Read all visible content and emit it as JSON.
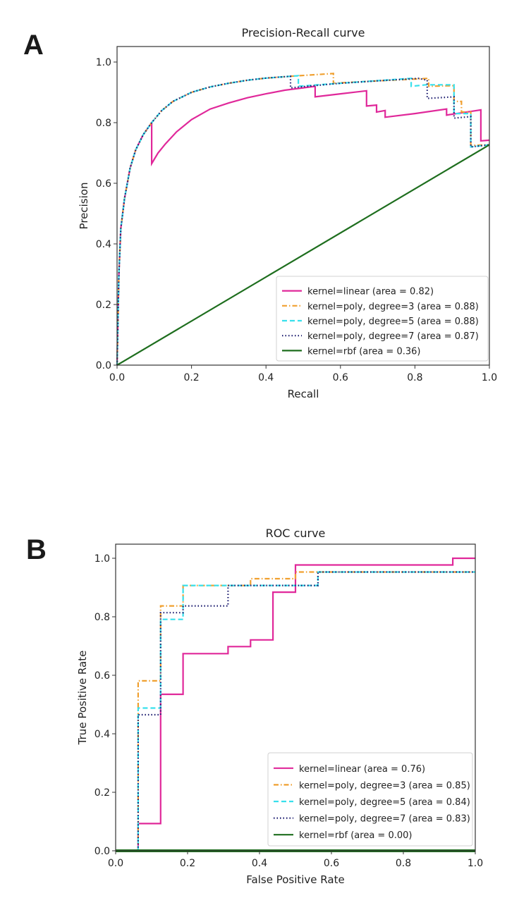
{
  "panels": {
    "a_label": "A",
    "b_label": "B"
  },
  "colors": {
    "linear": "#e0289a",
    "poly3": "#f0a030",
    "poly5": "#38e0ec",
    "poly7": "#1a1a6e",
    "rbf": "#1e6e1e"
  },
  "chart_data": [
    {
      "type": "line",
      "id": "pr",
      "title": "Precision-Recall curve",
      "xlabel": "Recall",
      "ylabel": "Precision",
      "xlim": [
        0.0,
        1.0
      ],
      "ylim": [
        0.0,
        1.05
      ],
      "xticks": [
        "0.0",
        "0.2",
        "0.4",
        "0.6",
        "0.8",
        "1.0"
      ],
      "yticks": [
        "0.0",
        "0.2",
        "0.4",
        "0.6",
        "0.8",
        "1.0"
      ],
      "grid": false,
      "legend_position": "lower-right",
      "series": [
        {
          "key": "linear",
          "name": "kernel=linear (area = 0.82)",
          "style": "solid",
          "points": [
            [
              0.0,
              0.0
            ],
            [
              0.005,
              0.3
            ],
            [
              0.01,
              0.45
            ],
            [
              0.02,
              0.55
            ],
            [
              0.035,
              0.65
            ],
            [
              0.05,
              0.71
            ],
            [
              0.07,
              0.76
            ],
            [
              0.093,
              0.8
            ],
            [
              0.093,
              0.665
            ],
            [
              0.11,
              0.7
            ],
            [
              0.13,
              0.73
            ],
            [
              0.16,
              0.77
            ],
            [
              0.2,
              0.81
            ],
            [
              0.25,
              0.845
            ],
            [
              0.3,
              0.865
            ],
            [
              0.35,
              0.882
            ],
            [
              0.4,
              0.895
            ],
            [
              0.45,
              0.907
            ],
            [
              0.5,
              0.915
            ],
            [
              0.532,
              0.92
            ],
            [
              0.532,
              0.885
            ],
            [
              0.6,
              0.895
            ],
            [
              0.67,
              0.905
            ],
            [
              0.67,
              0.855
            ],
            [
              0.697,
              0.858
            ],
            [
              0.697,
              0.835
            ],
            [
              0.72,
              0.84
            ],
            [
              0.72,
              0.818
            ],
            [
              0.8,
              0.83
            ],
            [
              0.885,
              0.845
            ],
            [
              0.885,
              0.825
            ],
            [
              0.955,
              0.838
            ],
            [
              0.977,
              0.842
            ],
            [
              0.977,
              0.74
            ],
            [
              1.0,
              0.742
            ]
          ]
        },
        {
          "key": "poly3",
          "name": "kernel=poly, degree=3 (area = 0.88)",
          "style": "dashdot",
          "points": [
            [
              0.0,
              0.0
            ],
            [
              0.005,
              0.3
            ],
            [
              0.01,
              0.45
            ],
            [
              0.02,
              0.55
            ],
            [
              0.035,
              0.65
            ],
            [
              0.05,
              0.71
            ],
            [
              0.07,
              0.76
            ],
            [
              0.093,
              0.8
            ],
            [
              0.12,
              0.84
            ],
            [
              0.15,
              0.87
            ],
            [
              0.2,
              0.9
            ],
            [
              0.25,
              0.918
            ],
            [
              0.3,
              0.93
            ],
            [
              0.35,
              0.94
            ],
            [
              0.4,
              0.947
            ],
            [
              0.466,
              0.953
            ],
            [
              0.581,
              0.962
            ],
            [
              0.581,
              0.93
            ],
            [
              0.7,
              0.938
            ],
            [
              0.837,
              0.946
            ],
            [
              0.837,
              0.92
            ],
            [
              0.905,
              0.922
            ],
            [
              0.905,
              0.87
            ],
            [
              0.925,
              0.87
            ],
            [
              0.925,
              0.835
            ],
            [
              0.95,
              0.835
            ],
            [
              0.95,
              0.725
            ],
            [
              1.0,
              0.727
            ]
          ]
        },
        {
          "key": "poly5",
          "name": "kernel=poly, degree=5 (area = 0.88)",
          "style": "dashed",
          "points": [
            [
              0.0,
              0.0
            ],
            [
              0.005,
              0.3
            ],
            [
              0.01,
              0.45
            ],
            [
              0.02,
              0.55
            ],
            [
              0.035,
              0.65
            ],
            [
              0.05,
              0.71
            ],
            [
              0.07,
              0.76
            ],
            [
              0.093,
              0.8
            ],
            [
              0.12,
              0.84
            ],
            [
              0.15,
              0.87
            ],
            [
              0.2,
              0.9
            ],
            [
              0.25,
              0.918
            ],
            [
              0.3,
              0.93
            ],
            [
              0.35,
              0.94
            ],
            [
              0.4,
              0.947
            ],
            [
              0.466,
              0.953
            ],
            [
              0.487,
              0.955
            ],
            [
              0.487,
              0.92
            ],
            [
              0.6,
              0.93
            ],
            [
              0.79,
              0.946
            ],
            [
              0.79,
              0.92
            ],
            [
              0.83,
              0.925
            ],
            [
              0.905,
              0.925
            ],
            [
              0.905,
              0.83
            ],
            [
              0.95,
              0.83
            ],
            [
              0.95,
              0.72
            ],
            [
              1.0,
              0.727
            ]
          ]
        },
        {
          "key": "poly7",
          "name": "kernel=poly, degree=7 (area = 0.87)",
          "style": "dotted",
          "points": [
            [
              0.0,
              0.0
            ],
            [
              0.005,
              0.3
            ],
            [
              0.01,
              0.45
            ],
            [
              0.02,
              0.55
            ],
            [
              0.035,
              0.65
            ],
            [
              0.05,
              0.71
            ],
            [
              0.07,
              0.76
            ],
            [
              0.093,
              0.8
            ],
            [
              0.12,
              0.84
            ],
            [
              0.15,
              0.87
            ],
            [
              0.2,
              0.9
            ],
            [
              0.25,
              0.918
            ],
            [
              0.3,
              0.93
            ],
            [
              0.35,
              0.94
            ],
            [
              0.4,
              0.947
            ],
            [
              0.466,
              0.953
            ],
            [
              0.466,
              0.915
            ],
            [
              0.6,
              0.93
            ],
            [
              0.7,
              0.938
            ],
            [
              0.81,
              0.946
            ],
            [
              0.833,
              0.94
            ],
            [
              0.833,
              0.88
            ],
            [
              0.905,
              0.885
            ],
            [
              0.905,
              0.815
            ],
            [
              0.95,
              0.82
            ],
            [
              0.95,
              0.72
            ],
            [
              1.0,
              0.727
            ]
          ]
        },
        {
          "key": "rbf",
          "name": "kernel=rbf (area = 0.36)",
          "style": "solid",
          "points": [
            [
              0.0,
              0.0
            ],
            [
              1.0,
              0.727
            ]
          ]
        }
      ]
    },
    {
      "type": "line",
      "id": "roc",
      "title": "ROC curve",
      "xlabel": "False Positive Rate",
      "ylabel": "True Positive Rate",
      "xlim": [
        0.0,
        1.0
      ],
      "ylim": [
        0.0,
        1.05
      ],
      "xticks": [
        "0.0",
        "0.2",
        "0.4",
        "0.6",
        "0.8",
        "1.0"
      ],
      "yticks": [
        "0.0",
        "0.2",
        "0.4",
        "0.6",
        "0.8",
        "1.0"
      ],
      "grid": false,
      "legend_position": "lower-right",
      "series": [
        {
          "key": "linear",
          "name": "kernel=linear (area = 0.76)",
          "style": "solid",
          "points": [
            [
              0.0625,
              0.0
            ],
            [
              0.0625,
              0.093
            ],
            [
              0.125,
              0.093
            ],
            [
              0.125,
              0.535
            ],
            [
              0.1875,
              0.535
            ],
            [
              0.1875,
              0.674
            ],
            [
              0.3125,
              0.674
            ],
            [
              0.3125,
              0.698
            ],
            [
              0.375,
              0.698
            ],
            [
              0.375,
              0.721
            ],
            [
              0.4375,
              0.721
            ],
            [
              0.4375,
              0.884
            ],
            [
              0.5,
              0.884
            ],
            [
              0.5,
              0.977
            ],
            [
              0.9375,
              0.977
            ],
            [
              0.9375,
              1.0
            ],
            [
              1.0,
              1.0
            ]
          ]
        },
        {
          "key": "poly3",
          "name": "kernel=poly, degree=3 (area = 0.85)",
          "style": "dashdot",
          "points": [
            [
              0.0625,
              0.0
            ],
            [
              0.0625,
              0.581
            ],
            [
              0.125,
              0.581
            ],
            [
              0.125,
              0.837
            ],
            [
              0.1875,
              0.837
            ],
            [
              0.1875,
              0.907
            ],
            [
              0.375,
              0.907
            ],
            [
              0.375,
              0.93
            ],
            [
              0.5,
              0.93
            ],
            [
              0.5,
              0.953
            ],
            [
              1.0,
              0.953
            ]
          ]
        },
        {
          "key": "poly5",
          "name": "kernel=poly, degree=5 (area = 0.84)",
          "style": "dashed",
          "points": [
            [
              0.0625,
              0.0
            ],
            [
              0.0625,
              0.488
            ],
            [
              0.125,
              0.488
            ],
            [
              0.125,
              0.791
            ],
            [
              0.1875,
              0.791
            ],
            [
              0.1875,
              0.907
            ],
            [
              0.5625,
              0.907
            ],
            [
              0.5625,
              0.953
            ],
            [
              1.0,
              0.953
            ]
          ]
        },
        {
          "key": "poly7",
          "name": "kernel=poly, degree=7 (area = 0.83)",
          "style": "dotted",
          "points": [
            [
              0.0625,
              0.0
            ],
            [
              0.0625,
              0.465
            ],
            [
              0.125,
              0.465
            ],
            [
              0.125,
              0.814
            ],
            [
              0.1875,
              0.814
            ],
            [
              0.1875,
              0.837
            ],
            [
              0.3125,
              0.837
            ],
            [
              0.3125,
              0.907
            ],
            [
              0.5625,
              0.907
            ],
            [
              0.5625,
              0.953
            ],
            [
              1.0,
              0.953
            ]
          ]
        },
        {
          "key": "rbf",
          "name": "kernel=rbf (area = 0.00)",
          "style": "solid",
          "points": [
            [
              0.0,
              0.0
            ],
            [
              1.0,
              0.0
            ]
          ]
        }
      ]
    }
  ]
}
